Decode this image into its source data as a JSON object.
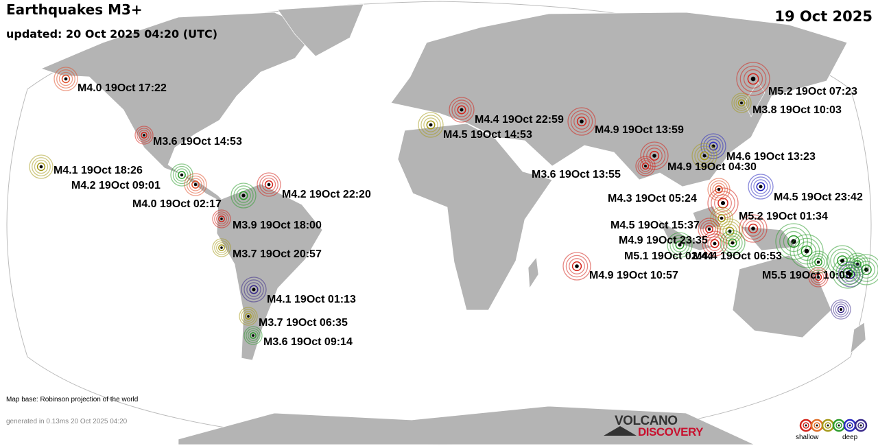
{
  "header": {
    "title": "Earthquakes M3+",
    "updated": "updated: 20 Oct 2025 04:20 (UTC)",
    "date": "19 Oct 2025"
  },
  "footer": {
    "map_base": "Map base: Robinson projection of the world",
    "generated": "generated in 0.13ms 20 Oct 2025 04:20"
  },
  "logo": {
    "line1": "VOLCANO",
    "line2": "DISCOVERY"
  },
  "legend": {
    "shallow": "shallow",
    "deep": "deep",
    "depth_colors": [
      "#d4241b",
      "#e0702a",
      "#a59a1a",
      "#2d9c2d",
      "#2a2ac0",
      "#3a2a8a"
    ]
  },
  "colors": {
    "land": "#b4b4b4",
    "ocean": "#ffffff",
    "border": "#ffffff"
  },
  "quakes": [
    {
      "label": "M4.0 19Oct 17:22",
      "depth_color": "#e0502a"
    },
    {
      "label": "M3.6 19Oct 14:53",
      "depth_color": "#d4241b"
    },
    {
      "label": "M4.1 19Oct 18:26",
      "depth_color": "#a59a1a"
    },
    {
      "label": "M4.2 19Oct 09:01",
      "depth_color": "#2d9c2d"
    },
    {
      "label": "M4.0 19Oct 02:17",
      "depth_color": "#e0502a"
    },
    {
      "label": "M4.2 19Oct 22:20",
      "depth_color": "#d4241b"
    },
    {
      "label": "M3.9 19Oct 18:00",
      "depth_color": "#d4241b"
    },
    {
      "label": "M3.7 19Oct 20:57",
      "depth_color": "#a59a1a"
    },
    {
      "label": "M4.1 19Oct 01:13",
      "depth_color": "#3a2a8a"
    },
    {
      "label": "M3.7 19Oct 06:35",
      "depth_color": "#a59a1a"
    },
    {
      "label": "M3.6 19Oct 09:14",
      "depth_color": "#2d9c2d"
    },
    {
      "label": "M4.4 19Oct 22:59",
      "depth_color": "#d4241b"
    },
    {
      "label": "M4.5 19Oct 14:53",
      "depth_color": "#a59a1a"
    },
    {
      "label": "M4.9 19Oct 13:59",
      "depth_color": "#d4241b"
    },
    {
      "label": "M5.2 19Oct 07:23",
      "depth_color": "#d4241b"
    },
    {
      "label": "M3.8 19Oct 10:03",
      "depth_color": "#a59a1a"
    },
    {
      "label": "M4.6 19Oct 13:23",
      "depth_color": "#2a2ac0"
    },
    {
      "label": "M4.9 19Oct 04:30",
      "depth_color": "#a59a1a"
    },
    {
      "label": "M3.6 19Oct 13:55",
      "depth_color": "#d4241b"
    },
    {
      "label": "M4.5 19Oct 23:42",
      "depth_color": "#2a2ac0"
    },
    {
      "label": "M4.3 19Oct 05:24",
      "depth_color": "#e0502a"
    },
    {
      "label": "M5.2 19Oct 01:34",
      "depth_color": "#d4241b"
    },
    {
      "label": "M4.5 19Oct 15:37",
      "depth_color": "#d4241b"
    },
    {
      "label": "M4.9 19Oct 23:35",
      "depth_color": "#d4241b"
    },
    {
      "label": "M5.1 19Oct 02:44",
      "depth_color": "#2d9c2d"
    },
    {
      "label": "M4.4 19Oct 06:53",
      "depth_color": "#2d9c2d"
    },
    {
      "label": "M4.9 19Oct 10:57",
      "depth_color": "#d4241b"
    },
    {
      "label": "M5.5 19Oct 10:03",
      "depth_color": "#2d9c2d"
    }
  ],
  "unlabeled_quakes": [
    {
      "depth_color": "#2d9c2d"
    },
    {
      "depth_color": "#d4241b"
    },
    {
      "depth_color": "#d4241b"
    },
    {
      "depth_color": "#a59a1a"
    },
    {
      "depth_color": "#a59a1a"
    },
    {
      "depth_color": "#2d9c2d"
    },
    {
      "depth_color": "#2d9c2d"
    },
    {
      "depth_color": "#2d9c2d"
    },
    {
      "depth_color": "#2d9c2d"
    },
    {
      "depth_color": "#2d9c2d"
    },
    {
      "depth_color": "#2d9c2d"
    },
    {
      "depth_color": "#3a2a8a"
    },
    {
      "depth_color": "#3a2a8a"
    },
    {
      "depth_color": "#d4241b"
    }
  ]
}
